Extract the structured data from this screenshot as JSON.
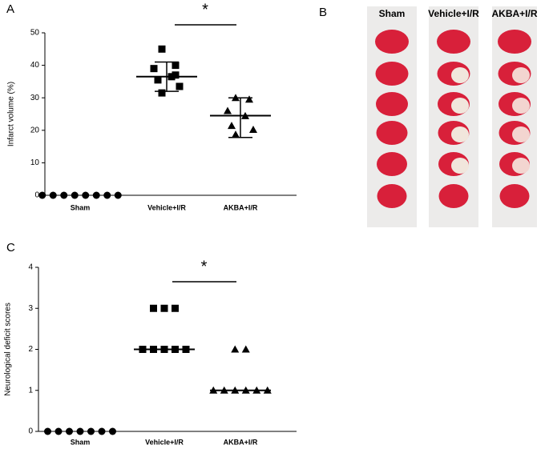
{
  "chart_data": [
    {
      "type": "scatter",
      "label": "A",
      "ylabel": "Infarct volume (%)",
      "annotation": "*",
      "categories": [
        "Sham",
        "Vehicle+I/R",
        "AKBA+I/R"
      ],
      "ylim": [
        0,
        50
      ],
      "yticks": [
        0,
        10,
        20,
        30,
        40,
        50
      ],
      "series": [
        {
          "name": "Sham",
          "marker": "circle",
          "color": "#000000",
          "values": [
            0,
            0,
            0,
            0,
            0,
            0,
            0,
            0
          ]
        },
        {
          "name": "Vehicle+I/R",
          "marker": "square",
          "color": "#000000",
          "values": [
            45,
            40,
            39,
            36.5,
            35.5,
            33.5,
            31.5,
            37
          ],
          "center": 36.5,
          "error": [
            32,
            41
          ]
        },
        {
          "name": "AKBA+I/R",
          "marker": "triangle",
          "color": "#000000",
          "values": [
            30,
            29.5,
            26,
            24.4,
            21.4,
            20.2,
            18.7
          ],
          "center": 24.5,
          "error": [
            17.8,
            30
          ]
        }
      ]
    },
    {
      "type": "scatter",
      "label": "C",
      "ylabel": "Neurological deficit scores",
      "annotation": "*",
      "categories": [
        "Sham",
        "Vehicle+I/R",
        "AKBA+I/R"
      ],
      "ylim": [
        0,
        4
      ],
      "yticks": [
        0,
        1,
        2,
        3,
        4
      ],
      "series": [
        {
          "name": "Sham",
          "marker": "circle",
          "color": "#000000",
          "values": [
            0,
            0,
            0,
            0,
            0,
            0,
            0
          ]
        },
        {
          "name": "Vehicle+I/R",
          "marker": "square",
          "color": "#000000",
          "values": [
            3,
            3,
            3,
            2,
            2,
            2,
            2,
            2
          ],
          "center": 2
        },
        {
          "name": "AKBA+I/R",
          "marker": "triangle",
          "color": "#000000",
          "values": [
            2,
            2,
            1,
            1,
            1,
            1,
            1,
            1
          ],
          "center": 1
        }
      ]
    }
  ],
  "image_panel": {
    "label": "B",
    "columns": [
      "Sham",
      "Vehicle+I/R",
      "AKBA+I/R"
    ]
  }
}
